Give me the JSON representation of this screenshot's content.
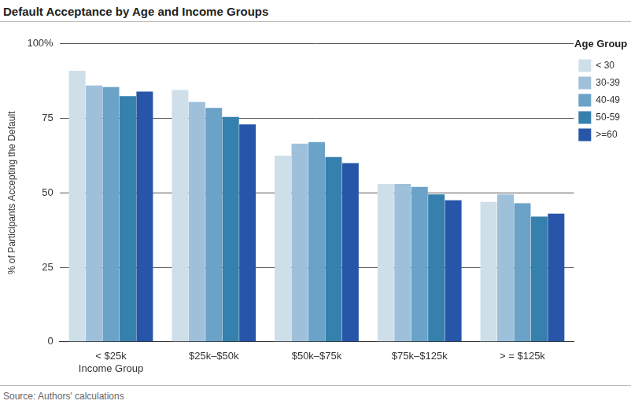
{
  "chart_data": {
    "type": "bar",
    "title": "Default Acceptance by Age and Income Groups",
    "y_label": "% of Participants Accepting the Default",
    "x_label": "Income Group",
    "source": "Source: Authors' calculations",
    "legend_title": "Age Group",
    "legend": "right",
    "grid": true,
    "categories": [
      "< $25k",
      "$25k–$50k",
      "$50k–$75k",
      "$75k–$125k",
      "> = $125k"
    ],
    "series": [
      {
        "name": "< 30",
        "color": "#cfdfea",
        "values": [
          91,
          84.5,
          62.5,
          53,
          47
        ]
      },
      {
        "name": "30-39",
        "color": "#9fc0da",
        "values": [
          86,
          80.5,
          66.5,
          53,
          49.5
        ]
      },
      {
        "name": "40-49",
        "color": "#6aa2c8",
        "values": [
          85.5,
          78.5,
          67,
          52,
          46.5
        ]
      },
      {
        "name": "50-59",
        "color": "#3580ad",
        "values": [
          82.5,
          75.5,
          62,
          49.5,
          42
        ]
      },
      {
        "name": ">=60",
        "color": "#2755a8",
        "values": [
          84,
          73,
          60,
          47.5,
          43
        ]
      }
    ],
    "ylim": [
      0,
      100
    ],
    "yticks": [
      0,
      25,
      50,
      75,
      {
        "value": 100,
        "label": "100%"
      }
    ]
  }
}
